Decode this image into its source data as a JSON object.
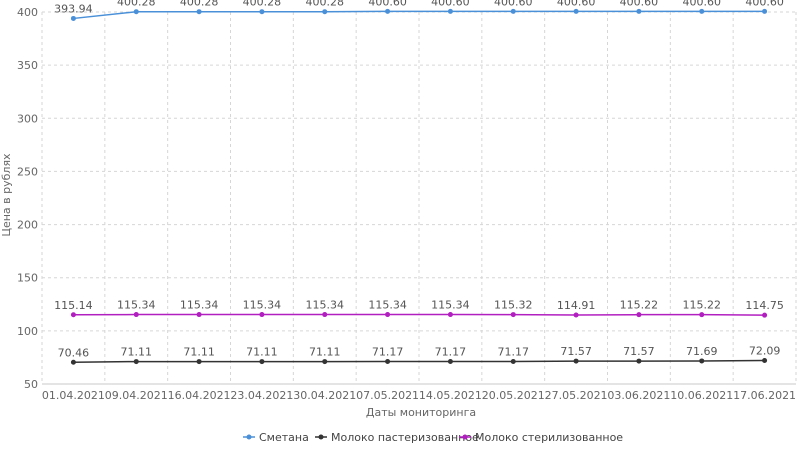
{
  "chart_data": {
    "type": "line",
    "xlabel": "Даты мониторинга",
    "ylabel": "Цена в рублях",
    "ylim": [
      50,
      400
    ],
    "yticks": [
      50,
      100,
      150,
      200,
      250,
      300,
      350,
      400
    ],
    "grid": true,
    "legend_position": "bottom",
    "categories": [
      "01.04.2021",
      "09.04.2021",
      "16.04.2021",
      "23.04.2021",
      "30.04.2021",
      "07.05.2021",
      "14.05.2021",
      "20.05.2021",
      "27.05.2021",
      "03.06.2021",
      "10.06.2021",
      "17.06.2021"
    ],
    "series": [
      {
        "name": "Сметана",
        "color": "#4a90d9",
        "values": [
          393.94,
          400.28,
          400.28,
          400.28,
          400.28,
          400.6,
          400.6,
          400.6,
          400.6,
          400.6,
          400.6,
          400.6
        ],
        "labels": [
          "393.94",
          "400.28",
          "400.28",
          "400.28",
          "400.28",
          "400.60",
          "400.60",
          "400.60",
          "400.60",
          "400.60",
          "400.60",
          "400.60"
        ]
      },
      {
        "name": "Молоко пастеризованное",
        "color": "#333333",
        "values": [
          70.46,
          71.11,
          71.11,
          71.11,
          71.11,
          71.17,
          71.17,
          71.17,
          71.57,
          71.57,
          71.69,
          72.09
        ],
        "labels": [
          "70.46",
          "71.11",
          "71.11",
          "71.11",
          "71.11",
          "71.17",
          "71.17",
          "71.17",
          "71.57",
          "71.57",
          "71.69",
          "72.09"
        ]
      },
      {
        "name": "Молоко стерилизованное",
        "color": "#b21fc0",
        "values": [
          115.14,
          115.34,
          115.34,
          115.34,
          115.34,
          115.34,
          115.34,
          115.32,
          114.91,
          115.22,
          115.22,
          114.75
        ],
        "labels": [
          "115.14",
          "115.34",
          "115.34",
          "115.34",
          "115.34",
          "115.34",
          "115.34",
          "115.32",
          "114.91",
          "115.22",
          "115.22",
          "114.75"
        ]
      }
    ]
  }
}
